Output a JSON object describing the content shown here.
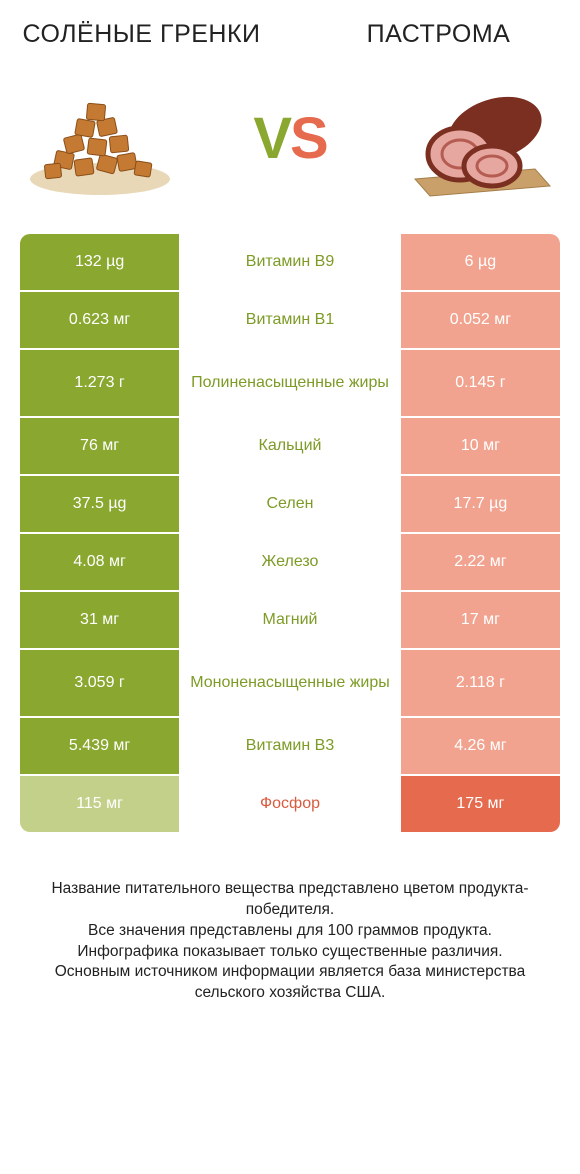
{
  "left_title": "СОЛЁНЫЕ ГРЕНКИ",
  "right_title": "ПАСТРОМА",
  "vs_v": "V",
  "vs_s": "S",
  "colors": {
    "left_win": "#8aa72f",
    "left_lose": "#c3d08a",
    "right_win": "#e66a4e",
    "right_lose": "#f1a38f",
    "mid_green": "#7d9b26",
    "mid_red": "#d85a3f",
    "text": "#222222",
    "background": "#ffffff"
  },
  "rows": [
    {
      "left": "132 µg",
      "mid": "Витамин B9",
      "right": "6 µg",
      "winner": "left",
      "tall": false
    },
    {
      "left": "0.623 мг",
      "mid": "Витамин B1",
      "right": "0.052 мг",
      "winner": "left",
      "tall": false
    },
    {
      "left": "1.273 г",
      "mid": "Полиненасыщенные жиры",
      "right": "0.145 г",
      "winner": "left",
      "tall": true
    },
    {
      "left": "76 мг",
      "mid": "Кальций",
      "right": "10 мг",
      "winner": "left",
      "tall": false
    },
    {
      "left": "37.5 µg",
      "mid": "Селен",
      "right": "17.7 µg",
      "winner": "left",
      "tall": false
    },
    {
      "left": "4.08 мг",
      "mid": "Железо",
      "right": "2.22 мг",
      "winner": "left",
      "tall": false
    },
    {
      "left": "31 мг",
      "mid": "Магний",
      "right": "17 мг",
      "winner": "left",
      "tall": false
    },
    {
      "left": "3.059 г",
      "mid": "Мононенасыщенные жиры",
      "right": "2.118 г",
      "winner": "left",
      "tall": true
    },
    {
      "left": "5.439 мг",
      "mid": "Витамин B3",
      "right": "4.26 мг",
      "winner": "left",
      "tall": false
    },
    {
      "left": "115 мг",
      "mid": "Фосфор",
      "right": "175 мг",
      "winner": "right",
      "tall": false
    }
  ],
  "footer_lines": [
    "Название питательного вещества представлено цветом продукта-победителя.",
    "Все значения представлены для 100 граммов продукта.",
    "Инфографика показывает только существенные различия.",
    "Основным источником информации является база министерства сельского хозяйства США."
  ],
  "food_svg": {
    "crouton_fill": "#c47a32",
    "crouton_stroke": "#8a4e18",
    "pastrami_board": "#caa06a",
    "pastrami_meat": "#7a2f20",
    "pastrami_slice": "#e6a7a0",
    "pastrami_slice_ring": "#b55c52"
  }
}
